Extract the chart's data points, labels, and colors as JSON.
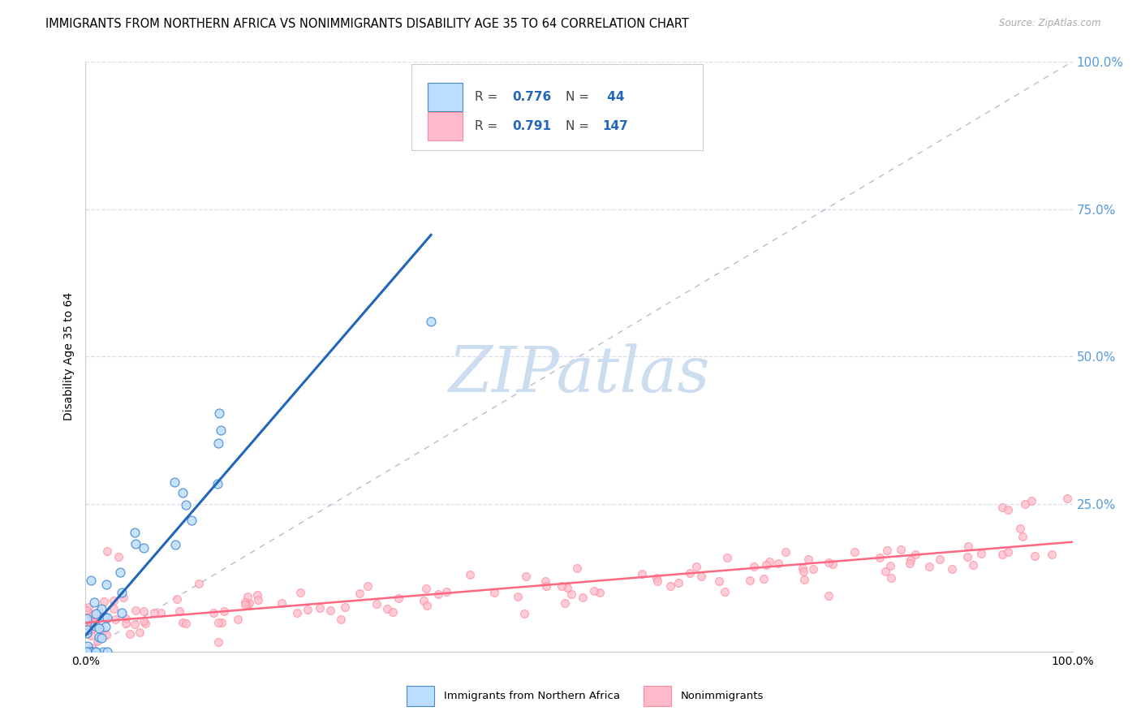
{
  "title": "IMMIGRANTS FROM NORTHERN AFRICA VS NONIMMIGRANTS DISABILITY AGE 35 TO 64 CORRELATION CHART",
  "source": "Source: ZipAtlas.com",
  "ylabel": "Disability Age 35 to 64",
  "legend_label1": "Immigrants from Northern Africa",
  "legend_label2": "Nonimmigrants",
  "R1": "0.776",
  "N1": "44",
  "R2": "0.791",
  "N2": "147",
  "color_blue_fill": "#BBDDFF",
  "color_blue_edge": "#4488CC",
  "color_blue_line": "#2266BB",
  "color_pink_fill": "#FFBBCC",
  "color_pink_edge": "#FF8899",
  "color_pink_line": "#FF6680",
  "color_diag": "#BBBBCC",
  "color_right_axis": "#5599DD",
  "color_grid": "#DDDDEE",
  "watermark_color": "#CCDDEF",
  "R_N_color": "#2266BB",
  "background": "#FFFFFF",
  "ylim": [
    0.0,
    1.0
  ],
  "xlim": [
    0.0,
    1.0
  ]
}
